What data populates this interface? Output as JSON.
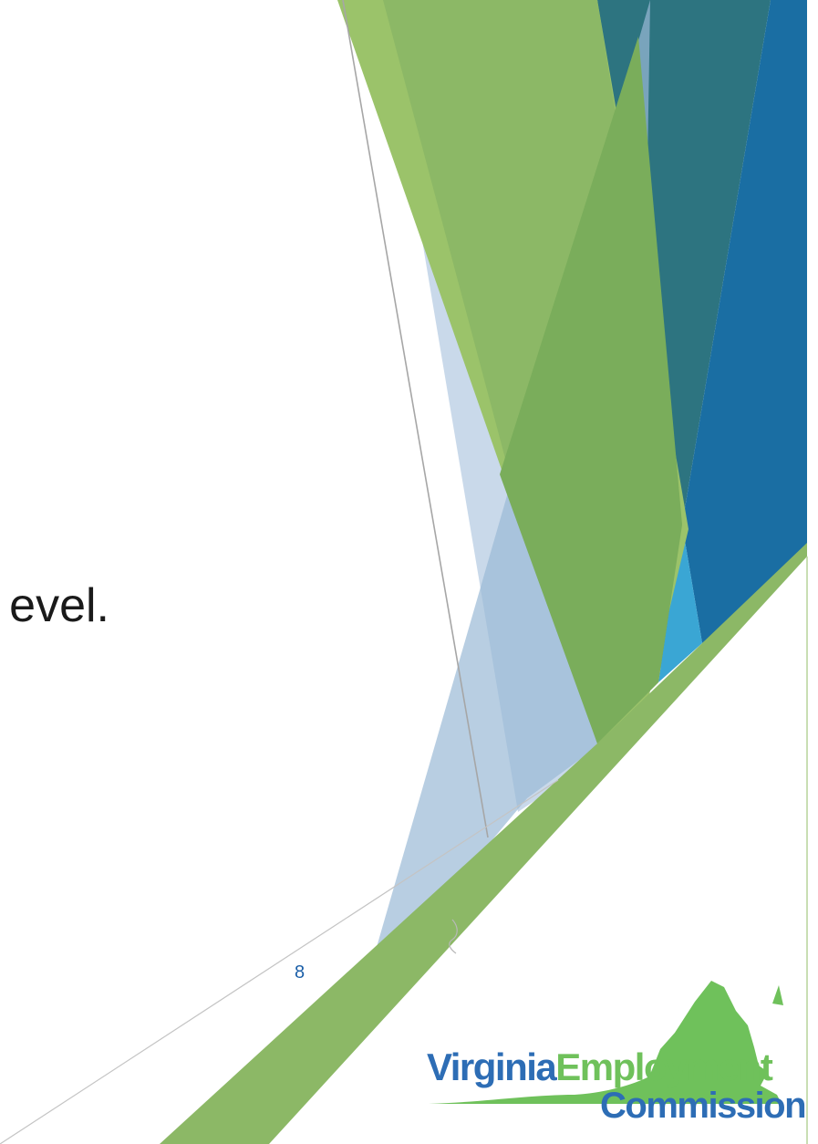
{
  "slide": {
    "body_text": "evel.",
    "page_number": "8"
  },
  "logo": {
    "word_virginia": "Virginia",
    "word_employment": "Employment",
    "word_commission": "Commission"
  },
  "colors": {
    "green_light": "#9bc36a",
    "green": "#8cb866",
    "green_dark": "#7aad5b",
    "teal": "#2d7480",
    "blue": "#1a6ea3",
    "sky": "#3aa6d4",
    "pale_blue": "#c9d9ea",
    "mid_blue": "#8eb1cf",
    "logo_blue": "#2d6db5",
    "logo_green": "#6fc15b"
  }
}
